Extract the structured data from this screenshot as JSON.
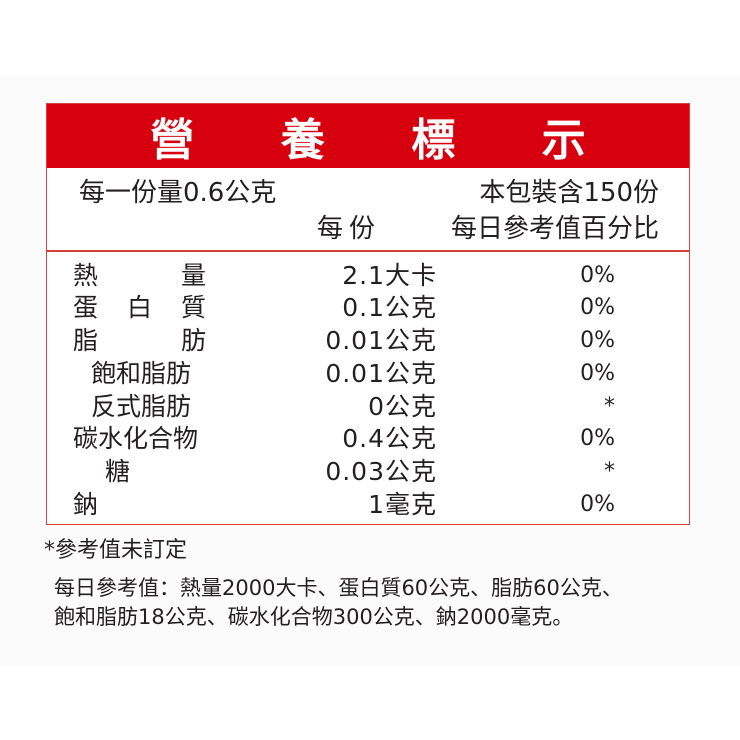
{
  "title_chars": [
    "營",
    "養",
    "標",
    "示"
  ],
  "serving_size": "每一份量0.6公克",
  "servings_per_package": "本包裝含150份",
  "col_per_serving": "每份",
  "col_daily_value": "每日參考值百分比",
  "rows": [
    {
      "label": "熱　　　量",
      "value": "2.1大卡",
      "pct": "0%"
    },
    {
      "label": "蛋　白　質",
      "value": "0.1公克",
      "pct": "0%"
    },
    {
      "label": "脂　　　肪",
      "value": "0.01公克",
      "pct": "0%"
    },
    {
      "label": "飽和脂肪",
      "value": "0.01公克",
      "pct": "0%"
    },
    {
      "label": "反式脂肪",
      "value": "0公克",
      "pct": "*"
    },
    {
      "label": "碳水化合物",
      "value": "0.4公克",
      "pct": "0%"
    },
    {
      "label": "糖",
      "value": "0.03公克",
      "pct": "*"
    },
    {
      "label": "鈉",
      "value": "1毫克",
      "pct": "0%"
    }
  ],
  "footnote": "*參考值未訂定",
  "daily_ref_line1": "每日參考值：熱量2000大卡、蛋白質60公克、脂肪60公克、",
  "daily_ref_line2": "飽和脂肪18公克、碳水化合物300公克、鈉2000毫克。",
  "colors": {
    "header_red": "#d7000f",
    "border": "#d2413a",
    "text": "#231f20"
  }
}
